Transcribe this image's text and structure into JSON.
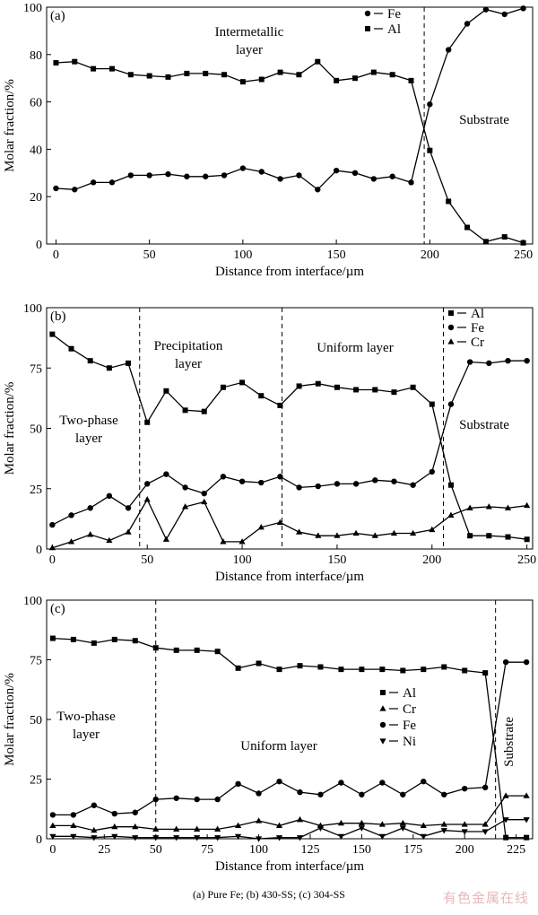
{
  "figure_caption": "(a) Pure Fe; (b) 430-SS; (c) 304-SS",
  "watermark": "有色金属在线",
  "chart_data": [
    {
      "type": "line",
      "panel_label": "(a)",
      "xlabel": "Distance from interface/µm",
      "ylabel": "Molar fraction/%",
      "xlim": [
        -5,
        255
      ],
      "ylim": [
        0,
        100
      ],
      "xticks": [
        0,
        50,
        100,
        150,
        200,
        250
      ],
      "yticks": [
        0,
        20,
        40,
        60,
        80,
        100
      ],
      "grid": false,
      "legend_position": "top-right",
      "boundaries": [
        197
      ],
      "region_labels": [
        "Intermetallic layer",
        "Substrate"
      ],
      "x": [
        0,
        10,
        20,
        30,
        40,
        50,
        60,
        70,
        80,
        90,
        100,
        110,
        120,
        130,
        140,
        150,
        160,
        170,
        180,
        190,
        200,
        210,
        220,
        230,
        240,
        250
      ],
      "series": [
        {
          "name": "Fe",
          "marker": "circle",
          "values": [
            23.5,
            23,
            26,
            26,
            29,
            29,
            29.5,
            28.5,
            28.5,
            29,
            32,
            30.5,
            27.5,
            29,
            23,
            31,
            30,
            27.5,
            28.5,
            26,
            59,
            82,
            93,
            99,
            97,
            99.5
          ]
        },
        {
          "name": "Al",
          "marker": "square",
          "values": [
            76.5,
            77,
            74,
            74,
            71.5,
            71,
            70.5,
            72,
            72,
            71.5,
            68.5,
            69.5,
            72.5,
            71.5,
            77,
            69,
            70,
            72.5,
            71.5,
            69,
            39.5,
            18,
            7,
            1,
            3,
            0.5
          ]
        }
      ]
    },
    {
      "type": "line",
      "panel_label": "(b)",
      "xlabel": "Distance from interface/µm",
      "ylabel": "Molar fraction/%",
      "xlim": [
        -3,
        253
      ],
      "ylim": [
        0,
        100
      ],
      "xticks": [
        0,
        50,
        100,
        150,
        200,
        250
      ],
      "yticks": [
        0,
        25,
        50,
        75,
        100
      ],
      "grid": false,
      "legend_position": "top-right",
      "boundaries": [
        46,
        121,
        206
      ],
      "region_labels": [
        "Two-phase layer",
        "Precipitation layer",
        "Uniform layer",
        "Substrate"
      ],
      "x": [
        0,
        10,
        20,
        30,
        40,
        50,
        60,
        70,
        80,
        90,
        100,
        110,
        120,
        130,
        140,
        150,
        160,
        170,
        180,
        190,
        200,
        210,
        220,
        230,
        240,
        250
      ],
      "series": [
        {
          "name": "Al",
          "marker": "square",
          "values": [
            89,
            83,
            78,
            75,
            77,
            52.5,
            65.5,
            57.5,
            57,
            67,
            69,
            63.5,
            59.5,
            67.5,
            68.5,
            67,
            66,
            66,
            65,
            67,
            60,
            26.5,
            5.5,
            5.5,
            5,
            4
          ]
        },
        {
          "name": "Fe",
          "marker": "circle",
          "values": [
            10,
            14,
            17,
            22,
            17,
            27,
            31,
            25.5,
            23,
            30,
            28,
            27.5,
            30,
            25.5,
            26,
            27,
            27,
            28.5,
            28,
            26.5,
            32,
            60,
            77.5,
            77,
            78,
            78
          ]
        },
        {
          "name": "Cr",
          "marker": "triangle-up",
          "values": [
            0.5,
            3,
            6,
            3.5,
            7,
            20.5,
            4,
            17.5,
            19.5,
            3,
            3,
            9,
            11,
            7,
            5.5,
            5.5,
            6.5,
            5.5,
            6.5,
            6.5,
            8,
            14,
            17,
            17.5,
            17,
            18
          ]
        }
      ]
    },
    {
      "type": "line",
      "panel_label": "(c)",
      "xlabel": "Distance from interface/µm",
      "ylabel": "Molar fraction/%",
      "xlim": [
        -3,
        233
      ],
      "ylim": [
        0,
        100
      ],
      "xticks": [
        0,
        25,
        50,
        75,
        100,
        125,
        150,
        175,
        200,
        225
      ],
      "yticks": [
        0,
        25,
        50,
        75,
        100
      ],
      "grid": false,
      "legend_position": "right",
      "boundaries": [
        50,
        215
      ],
      "region_labels": [
        "Two-phase layer",
        "Uniform layer",
        "Substrate"
      ],
      "x": [
        0,
        10,
        20,
        30,
        40,
        50,
        60,
        70,
        80,
        90,
        100,
        110,
        120,
        130,
        140,
        150,
        160,
        170,
        180,
        190,
        200,
        210,
        220,
        230
      ],
      "series": [
        {
          "name": "Al",
          "marker": "square",
          "values": [
            84,
            83.5,
            82,
            83.5,
            83,
            80,
            79,
            79,
            78.5,
            71.5,
            73.5,
            71,
            72.5,
            72,
            71,
            71,
            71,
            70.5,
            71,
            72,
            70.5,
            69.5,
            0.5,
            0.5
          ]
        },
        {
          "name": "Cr",
          "marker": "triangle-up",
          "values": [
            5.5,
            5.5,
            3.5,
            5,
            5,
            4,
            4,
            4,
            4,
            5.5,
            7.5,
            5.5,
            8,
            5.5,
            6.5,
            6.5,
            6,
            6.5,
            5.5,
            6,
            6,
            6,
            18,
            18
          ]
        },
        {
          "name": "Fe",
          "marker": "circle",
          "values": [
            10,
            10,
            14,
            10.5,
            11,
            16.5,
            17,
            16.5,
            16.5,
            23,
            19,
            24,
            19.5,
            18.5,
            23.5,
            18.5,
            23.5,
            18.5,
            24,
            18.5,
            21,
            21.5,
            74,
            74
          ]
        },
        {
          "name": "Ni",
          "marker": "triangle-down",
          "values": [
            1,
            1,
            0.5,
            1,
            0.5,
            0.5,
            0.5,
            0.5,
            0.5,
            1,
            0,
            0.5,
            0.5,
            4.5,
            1,
            4.5,
            1,
            4.5,
            1,
            3.5,
            3,
            3,
            8,
            8
          ]
        }
      ]
    }
  ]
}
